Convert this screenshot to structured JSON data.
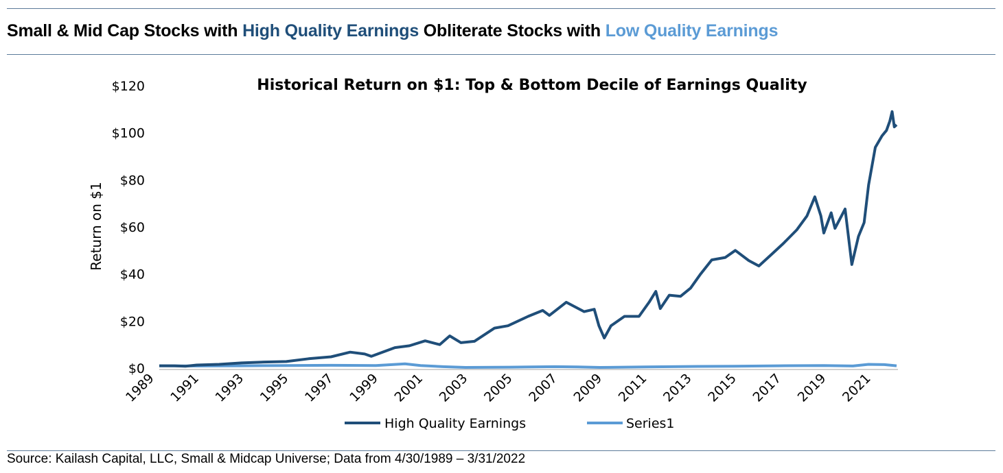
{
  "headline": {
    "part1": "Small & Mid Cap Stocks with ",
    "part2": "High Quality Earnings",
    "part3": " Obliterate Stocks with ",
    "part4": "Low Quality Earnings"
  },
  "source": "Source: Kailash Capital, LLC, Small & Midcap Universe; Data from 4/30/1989 – 3/31/2022",
  "colors": {
    "high_quality": "#1f4e79",
    "low_quality": "#5b9bd5",
    "rule": "#5b7a99"
  },
  "chart_data": {
    "type": "line",
    "title": "Historical Return on $1: Top & Bottom Decile of Earnings Quality",
    "ylabel": "Return on $1",
    "xlabel": "",
    "ylim": [
      0,
      120
    ],
    "xlim": [
      1989.33,
      2022.25
    ],
    "yticks": [
      0,
      20,
      40,
      60,
      80,
      100,
      120
    ],
    "ytick_labels": [
      "$0",
      "$20",
      "$40",
      "$60",
      "$80",
      "$100",
      "$120"
    ],
    "xtick_labels": [
      "1989",
      "1991",
      "1993",
      "1995",
      "1997",
      "1999",
      "2001",
      "2003",
      "2005",
      "2007",
      "2009",
      "2011",
      "2013",
      "2015",
      "2017",
      "2019",
      "2021"
    ],
    "grid": false,
    "legend": "bottom",
    "series": [
      {
        "name": "High Quality Earnings",
        "color": "#1f4e79",
        "x": [
          1989.33,
          1990,
          1990.5,
          1991,
          1992,
          1993,
          1994,
          1995,
          1996,
          1997,
          1997.85,
          1998.5,
          1998.8,
          1999.85,
          2000.5,
          2001.2,
          2001.85,
          2002.3,
          2002.8,
          2003.4,
          2004.3,
          2004.9,
          2005.8,
          2006.45,
          2006.75,
          2007.5,
          2008.3,
          2008.75,
          2008.96,
          2009.2,
          2009.5,
          2010.1,
          2010.75,
          2011.2,
          2011.5,
          2011.7,
          2012.1,
          2012.6,
          2013.05,
          2013.5,
          2014,
          2014.6,
          2015.05,
          2015.65,
          2016.1,
          2016.7,
          2017.2,
          2017.8,
          2018.25,
          2018.6,
          2018.87,
          2019,
          2019.33,
          2019.5,
          2019.95,
          2020.25,
          2020.55,
          2020.8,
          2021,
          2021.3,
          2021.6,
          2021.8,
          2021.95,
          2022.05,
          2022.15,
          2022.25
        ],
        "y": [
          1,
          1,
          0.8,
          1.3,
          1.6,
          2.2,
          2.6,
          2.8,
          4,
          4.8,
          6.8,
          6,
          5,
          8.7,
          9.5,
          11.6,
          10,
          13.7,
          10.8,
          11.4,
          17,
          18,
          22,
          24.5,
          22.4,
          28,
          24,
          25,
          18,
          12.8,
          18,
          22,
          22,
          28,
          32.6,
          25.3,
          31,
          30.5,
          34,
          40,
          46,
          47,
          50,
          45.7,
          43.4,
          48.6,
          53,
          58.8,
          64.7,
          72.8,
          64.7,
          57.4,
          66,
          59.4,
          67.6,
          44,
          56,
          61.8,
          77.8,
          93.8,
          98.7,
          101,
          105,
          109,
          102.5,
          103.4
        ]
      },
      {
        "name": "Series1",
        "color": "#5b9bd5",
        "x": [
          1989.33,
          1991,
          1993,
          1995,
          1997,
          1999,
          2000.3,
          2001,
          2002,
          2003,
          2005,
          2007,
          2008,
          2009,
          2011,
          2013,
          2015,
          2017,
          2019,
          2020.3,
          2021,
          2021.7,
          2022.25
        ],
        "y": [
          1,
          0.9,
          1.0,
          1.1,
          1.2,
          1.1,
          1.8,
          1.1,
          0.6,
          0.3,
          0.4,
          0.6,
          0.5,
          0.3,
          0.5,
          0.7,
          0.8,
          1.0,
          1.1,
          0.9,
          1.6,
          1.5,
          1.0
        ]
      }
    ]
  }
}
